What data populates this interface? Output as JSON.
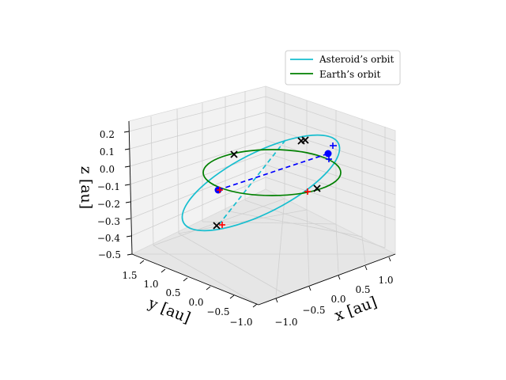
{
  "chart_data": {
    "type": "3d-line",
    "title": "",
    "axes": {
      "x": {
        "label": "x [au]",
        "ticks": [
          "−1.0",
          "−0.5",
          "0.0",
          "0.5",
          "1.0"
        ],
        "range": [
          -1.2,
          1.2
        ]
      },
      "y": {
        "label": "y [au]",
        "ticks": [
          "−1.0",
          "−0.5",
          "0.0",
          "0.5",
          "1.0",
          "1.5"
        ],
        "range": [
          -1.1,
          1.65
        ]
      },
      "z": {
        "label": "z [au]",
        "ticks": [
          "0.2",
          "0.1",
          "0.0",
          "−0.1",
          "−0.2",
          "−0.3",
          "−0.4",
          "−0.5"
        ],
        "range": [
          -0.5,
          0.27
        ]
      }
    },
    "grid": true,
    "legend": {
      "placement": "top-right"
    },
    "series": [
      {
        "name": "Asteroid’s orbit",
        "style": "solid",
        "color": "#17becf"
      },
      {
        "name": "Earth’s orbit",
        "style": "solid",
        "color": "#008000"
      }
    ],
    "colors": {
      "asteroid": "#17becf",
      "earth": "#008000",
      "transfer_line": "#0000ff",
      "blue_markers": "#0000ff",
      "red_markers": "#ff0000",
      "cross_markers": "#000000"
    }
  }
}
